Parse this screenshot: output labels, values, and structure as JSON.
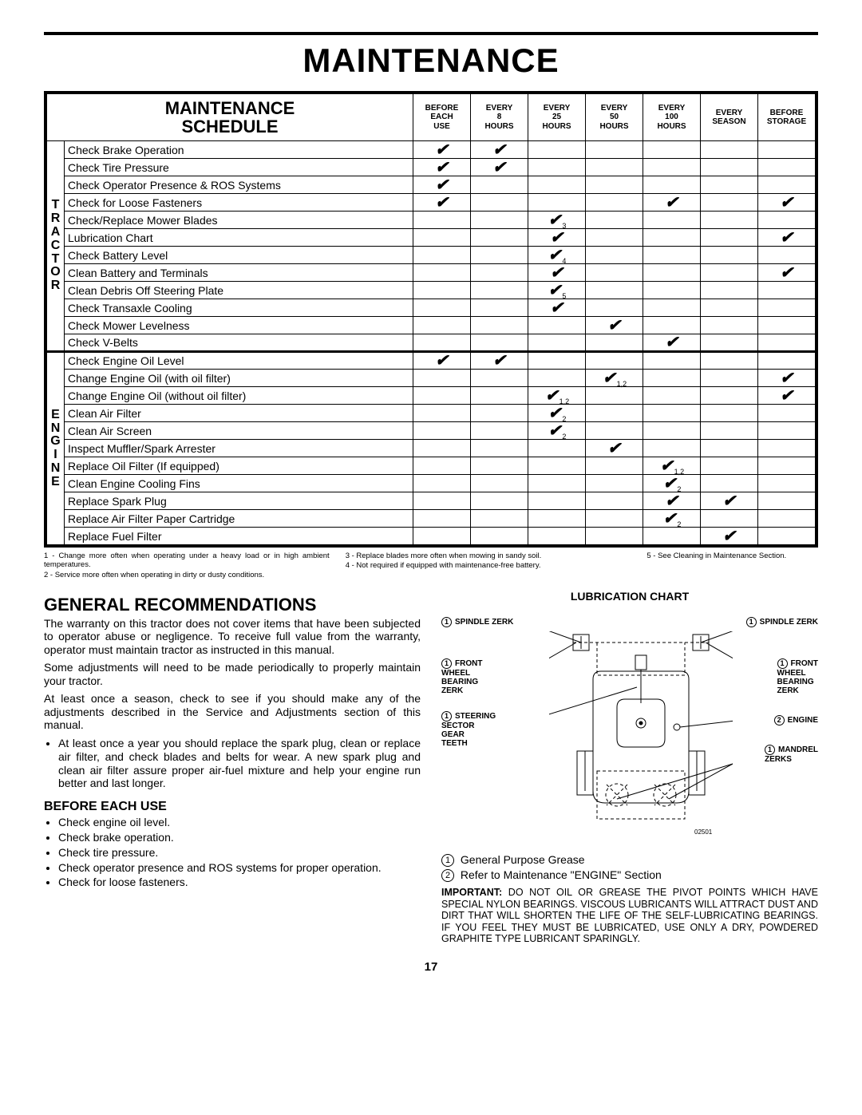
{
  "page_title": "MAINTENANCE",
  "page_number": "17",
  "schedule": {
    "heading": "MAINTENANCE\nSCHEDULE",
    "columns": [
      {
        "l1": "BEFORE",
        "l2": "EACH",
        "l3": "USE"
      },
      {
        "l1": "EVERY",
        "l2": "8",
        "l3": "HOURS"
      },
      {
        "l1": "EVERY",
        "l2": "25",
        "l3": "HOURS"
      },
      {
        "l1": "EVERY",
        "l2": "50",
        "l3": "HOURS"
      },
      {
        "l1": "EVERY",
        "l2": "100",
        "l3": "HOURS"
      },
      {
        "l1": "EVERY",
        "l2": "SEASON",
        "l3": ""
      },
      {
        "l1": "BEFORE",
        "l2": "STORAGE",
        "l3": ""
      }
    ],
    "groups": [
      {
        "label": "TRACTOR",
        "rows": [
          {
            "item": "Check Brake Operation",
            "marks": [
              "",
              "",
              "",
              "",
              "",
              "",
              ""
            ],
            "c": [
              1,
              1,
              0,
              0,
              0,
              0,
              0
            ]
          },
          {
            "item": "Check Tire Pressure",
            "marks": [
              "",
              "",
              "",
              "",
              "",
              "",
              ""
            ],
            "c": [
              1,
              1,
              0,
              0,
              0,
              0,
              0
            ]
          },
          {
            "item": "Check Operator Presence & ROS Systems",
            "marks": [
              "",
              "",
              "",
              "",
              "",
              "",
              ""
            ],
            "c": [
              1,
              0,
              0,
              0,
              0,
              0,
              0
            ]
          },
          {
            "item": "Check for Loose Fasteners",
            "marks": [
              "",
              "",
              "",
              "",
              "",
              "",
              ""
            ],
            "c": [
              1,
              0,
              0,
              0,
              1,
              0,
              1
            ]
          },
          {
            "item": "Check/Replace Mower Blades",
            "marks": [
              "",
              "",
              "3",
              "",
              "",
              "",
              ""
            ],
            "c": [
              0,
              0,
              1,
              0,
              0,
              0,
              0
            ]
          },
          {
            "item": "Lubrication Chart",
            "marks": [
              "",
              "",
              "",
              "",
              "",
              "",
              ""
            ],
            "c": [
              0,
              0,
              1,
              0,
              0,
              0,
              1
            ]
          },
          {
            "item": "Check Battery Level",
            "marks": [
              "",
              "",
              "4",
              "",
              "",
              "",
              ""
            ],
            "c": [
              0,
              0,
              1,
              0,
              0,
              0,
              0
            ]
          },
          {
            "item": "Clean Battery and Terminals",
            "marks": [
              "",
              "",
              "",
              "",
              "",
              "",
              ""
            ],
            "c": [
              0,
              0,
              1,
              0,
              0,
              0,
              1
            ]
          },
          {
            "item": "Clean Debris Off Steering Plate",
            "marks": [
              "",
              "",
              "5",
              "",
              "",
              "",
              ""
            ],
            "c": [
              0,
              0,
              1,
              0,
              0,
              0,
              0
            ]
          },
          {
            "item": "Check Transaxle Cooling",
            "marks": [
              "",
              "",
              "",
              "",
              "",
              "",
              ""
            ],
            "c": [
              0,
              0,
              1,
              0,
              0,
              0,
              0
            ]
          },
          {
            "item": "Check Mower Levelness",
            "marks": [
              "",
              "",
              "",
              "",
              "",
              "",
              ""
            ],
            "c": [
              0,
              0,
              0,
              1,
              0,
              0,
              0
            ]
          },
          {
            "item": "Check V-Belts",
            "marks": [
              "",
              "",
              "",
              "",
              "",
              "",
              ""
            ],
            "c": [
              0,
              0,
              0,
              0,
              1,
              0,
              0
            ]
          }
        ]
      },
      {
        "label": "ENGINE",
        "rows": [
          {
            "item": "Check Engine Oil Level",
            "marks": [
              "",
              "",
              "",
              "",
              "",
              "",
              ""
            ],
            "c": [
              1,
              1,
              0,
              0,
              0,
              0,
              0
            ]
          },
          {
            "item": "Change Engine Oil (with oil filter)",
            "marks": [
              "",
              "",
              "",
              "1,2",
              "",
              "",
              ""
            ],
            "c": [
              0,
              0,
              0,
              1,
              0,
              0,
              1
            ]
          },
          {
            "item": "Change Engine Oil (without oil filter)",
            "marks": [
              "",
              "",
              "1,2",
              "",
              "",
              "",
              ""
            ],
            "c": [
              0,
              0,
              1,
              0,
              0,
              0,
              1
            ]
          },
          {
            "item": "Clean Air Filter",
            "marks": [
              "",
              "",
              "2",
              "",
              "",
              "",
              ""
            ],
            "c": [
              0,
              0,
              1,
              0,
              0,
              0,
              0
            ]
          },
          {
            "item": "Clean Air Screen",
            "marks": [
              "",
              "",
              "2",
              "",
              "",
              "",
              ""
            ],
            "c": [
              0,
              0,
              1,
              0,
              0,
              0,
              0
            ]
          },
          {
            "item": "Inspect Muffler/Spark Arrester",
            "marks": [
              "",
              "",
              "",
              "",
              "",
              "",
              ""
            ],
            "c": [
              0,
              0,
              0,
              1,
              0,
              0,
              0
            ]
          },
          {
            "item": "Replace Oil Filter (If equipped)",
            "marks": [
              "",
              "",
              "",
              "",
              "1,2",
              "",
              ""
            ],
            "c": [
              0,
              0,
              0,
              0,
              1,
              0,
              0
            ]
          },
          {
            "item": "Clean Engine Cooling Fins",
            "marks": [
              "",
              "",
              "",
              "",
              "2",
              "",
              ""
            ],
            "c": [
              0,
              0,
              0,
              0,
              1,
              0,
              0
            ]
          },
          {
            "item": "Replace Spark Plug",
            "marks": [
              "",
              "",
              "",
              "",
              "",
              "",
              ""
            ],
            "c": [
              0,
              0,
              0,
              0,
              1,
              1,
              0
            ]
          },
          {
            "item": "Replace Air Filter Paper Cartridge",
            "marks": [
              "",
              "",
              "",
              "",
              "2",
              "",
              ""
            ],
            "c": [
              0,
              0,
              0,
              0,
              1,
              0,
              0
            ]
          },
          {
            "item": "Replace Fuel Filter",
            "marks": [
              "",
              "",
              "",
              "",
              "",
              "",
              ""
            ],
            "c": [
              0,
              0,
              0,
              0,
              0,
              1,
              0
            ]
          }
        ]
      }
    ]
  },
  "footnotes": {
    "n1": "1 - Change more often when operating under a heavy load or in high ambient temperatures.",
    "n2": "2 - Service more often when operating in dirty or dusty conditions.",
    "n3": "3 - Replace blades more often when mowing in sandy soil.",
    "n4": "4 - Not required if equipped with maintenance-free battery.",
    "n5": "5 - See Cleaning in Maintenance Section."
  },
  "general": {
    "heading": "GENERAL RECOMMENDATIONS",
    "p1": "The warranty on this tractor does not cover items that have been subjected to operator abuse or negligence.  To receive full value from the warranty, operator must maintain tractor as instructed in this manual.",
    "p2": "Some adjustments will need to be made periodically to properly maintain your tractor.",
    "p3": "At least once a season, check to see if you should make any of the adjustments described in the Service and Adjustments section of this manual.",
    "b1": "At least once a year you should replace the spark plug, clean or replace air filter, and check blades and belts for wear.  A new spark plug and clean air filter assure proper air-fuel mixture and help your engine run better and last longer."
  },
  "before": {
    "heading": "BEFORE EACH USE",
    "items": [
      "Check engine oil level.",
      "Check brake operation.",
      "Check tire pressure.",
      "Check operator presence and ROS systems for proper operation.",
      "Check for loose fasteners."
    ]
  },
  "lube": {
    "heading": "LUBRICATION CHART",
    "labels": {
      "spindle_l": "SPINDLE ZERK",
      "spindle_r": "SPINDLE ZERK",
      "front_l": "FRONT\nWHEEL\nBEARING\nZERK",
      "front_r": "FRONT\nWHEEL\nBEARING\nZERK",
      "steering": "STEERING\nSECTOR\nGEAR\nTEETH",
      "engine": "ENGINE",
      "mandrel": "MANDREL\nZERKS"
    },
    "fig_num": "02501",
    "legend": [
      {
        "n": "1",
        "text": "General Purpose Grease"
      },
      {
        "n": "2",
        "text": "Refer to Maintenance \"ENGINE\" Section"
      }
    ],
    "important_label": "IMPORTANT:",
    "important": "DO NOT OIL OR GREASE THE PIVOT POINTS WHICH HAVE SPECIAL NYLON BEARINGS.  VISCOUS LUBRICANTS WILL ATTRACT DUST AND DIRT THAT WILL SHORTEN THE LIFE OF THE SELF-LUBRICATING BEARINGS.  IF YOU FEEL THEY MUST BE LUBRICATED, USE ONLY A DRY, POWDERED GRAPHITE TYPE LUBRICANT SPARINGLY."
  }
}
